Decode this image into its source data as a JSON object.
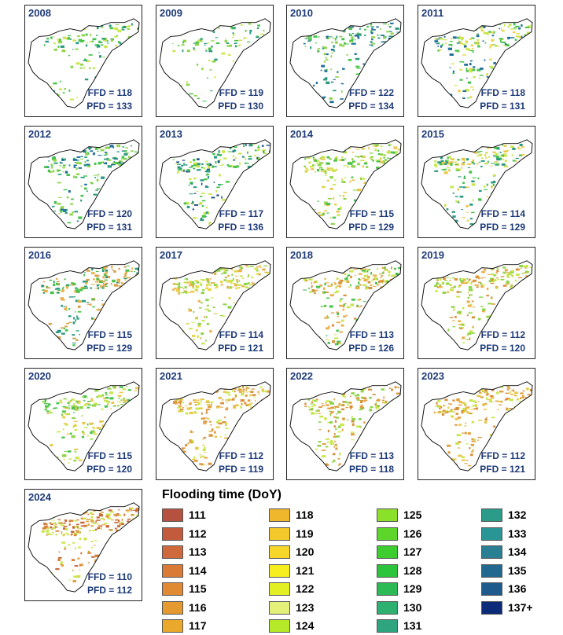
{
  "panels": [
    {
      "year": "2008",
      "ffd": "FFD = 118",
      "pfd": "PFD = 133",
      "palette": [
        "#47c24a",
        "#8fd44a",
        "#2a9a80",
        "#c9e64a"
      ],
      "density": 0.45
    },
    {
      "year": "2009",
      "ffd": "FFD = 119",
      "pfd": "PFD = 130",
      "palette": [
        "#47c24a",
        "#8fd44a",
        "#2a9a80",
        "#c9e64a"
      ],
      "density": 0.38
    },
    {
      "year": "2010",
      "ffd": "FFD = 122",
      "pfd": "PFD = 134",
      "palette": [
        "#1f6f9a",
        "#2a9a80",
        "#47c24a",
        "#8fd44a"
      ],
      "density": 0.6
    },
    {
      "year": "2011",
      "ffd": "FFD = 118",
      "pfd": "PFD = 131",
      "palette": [
        "#c9e64a",
        "#47c24a",
        "#1f6f9a",
        "#e8d64a"
      ],
      "density": 0.7
    },
    {
      "year": "2012",
      "ffd": "FFD = 120",
      "pfd": "PFD = 131",
      "palette": [
        "#2a9a80",
        "#47c24a",
        "#8fd44a",
        "#1f6f9a"
      ],
      "density": 0.75
    },
    {
      "year": "2013",
      "ffd": "FFD = 117",
      "pfd": "PFD = 136",
      "palette": [
        "#1f4f8a",
        "#2a9a80",
        "#47c24a",
        "#c9e64a"
      ],
      "density": 0.7
    },
    {
      "year": "2014",
      "ffd": "FFD = 115",
      "pfd": "PFD = 129",
      "palette": [
        "#c9e64a",
        "#47c24a",
        "#e8c84a",
        "#8fd44a"
      ],
      "density": 0.75
    },
    {
      "year": "2015",
      "ffd": "FFD = 114",
      "pfd": "PFD = 129",
      "palette": [
        "#47c24a",
        "#c9e64a",
        "#2a9a80",
        "#e8c84a"
      ],
      "density": 0.7
    },
    {
      "year": "2016",
      "ffd": "FFD = 115",
      "pfd": "PFD = 129",
      "palette": [
        "#e8b04a",
        "#47c24a",
        "#2a9a80",
        "#d9a04a"
      ],
      "density": 0.8
    },
    {
      "year": "2017",
      "ffd": "FFD = 114",
      "pfd": "PFD = 121",
      "palette": [
        "#e8d64a",
        "#c9e64a",
        "#e8b04a",
        "#8fd44a"
      ],
      "density": 0.8
    },
    {
      "year": "2018",
      "ffd": "FFD = 113",
      "pfd": "PFD = 126",
      "palette": [
        "#e8b04a",
        "#c9e64a",
        "#47c24a",
        "#d9903a"
      ],
      "density": 0.8
    },
    {
      "year": "2019",
      "ffd": "FFD = 112",
      "pfd": "PFD = 120",
      "palette": [
        "#e8b04a",
        "#c9e64a",
        "#d9903a",
        "#8fd44a"
      ],
      "density": 0.78
    },
    {
      "year": "2020",
      "ffd": "FFD = 115",
      "pfd": "PFD = 120",
      "palette": [
        "#c9e64a",
        "#47c24a",
        "#e8c84a",
        "#8fd44a"
      ],
      "density": 0.72
    },
    {
      "year": "2021",
      "ffd": "FFD = 112",
      "pfd": "PFD = 119",
      "palette": [
        "#e0a040",
        "#d9903a",
        "#c9e64a",
        "#e8c84a"
      ],
      "density": 0.78
    },
    {
      "year": "2022",
      "ffd": "FFD = 113",
      "pfd": "PFD = 118",
      "palette": [
        "#e0a040",
        "#c9e64a",
        "#d9903a",
        "#8fd44a"
      ],
      "density": 0.75
    },
    {
      "year": "2023",
      "ffd": "FFD = 112",
      "pfd": "PFD = 121",
      "palette": [
        "#e0a040",
        "#d9903a",
        "#c9e64a",
        "#e8c84a"
      ],
      "density": 0.75
    },
    {
      "year": "2024",
      "ffd": "FFD = 110",
      "pfd": "PFD = 112",
      "palette": [
        "#d9803a",
        "#c86a3a",
        "#e0a040",
        "#c9e64a"
      ],
      "density": 0.8
    }
  ],
  "legend": {
    "title": "Flooding time (DoY)",
    "items": [
      {
        "label": "111",
        "color": "#b5523f"
      },
      {
        "label": "112",
        "color": "#c25a3c"
      },
      {
        "label": "113",
        "color": "#cf683a"
      },
      {
        "label": "114",
        "color": "#d97a36"
      },
      {
        "label": "115",
        "color": "#e08a33"
      },
      {
        "label": "116",
        "color": "#e59a30"
      },
      {
        "label": "117",
        "color": "#eaa82d"
      },
      {
        "label": "118",
        "color": "#efb72c"
      },
      {
        "label": "119",
        "color": "#f3c82a"
      },
      {
        "label": "120",
        "color": "#f5d629"
      },
      {
        "label": "121",
        "color": "#f6ee1f"
      },
      {
        "label": "122",
        "color": "#e2f023"
      },
      {
        "label": "123",
        "color": "#e4f07a"
      },
      {
        "label": "124",
        "color": "#b4ea27"
      },
      {
        "label": "125",
        "color": "#8be02a"
      },
      {
        "label": "126",
        "color": "#5cd62b"
      },
      {
        "label": "127",
        "color": "#3dcd2e"
      },
      {
        "label": "128",
        "color": "#2cc43c"
      },
      {
        "label": "129",
        "color": "#2bba55"
      },
      {
        "label": "130",
        "color": "#2eb070"
      },
      {
        "label": "131",
        "color": "#2fa57f"
      },
      {
        "label": "132",
        "color": "#2c9c8a"
      },
      {
        "label": "133",
        "color": "#2a9595"
      },
      {
        "label": "134",
        "color": "#2a7f93"
      },
      {
        "label": "135",
        "color": "#23698f"
      },
      {
        "label": "136",
        "color": "#1f5a8c"
      },
      {
        "label": "137+",
        "color": "#0b2a78"
      }
    ]
  }
}
